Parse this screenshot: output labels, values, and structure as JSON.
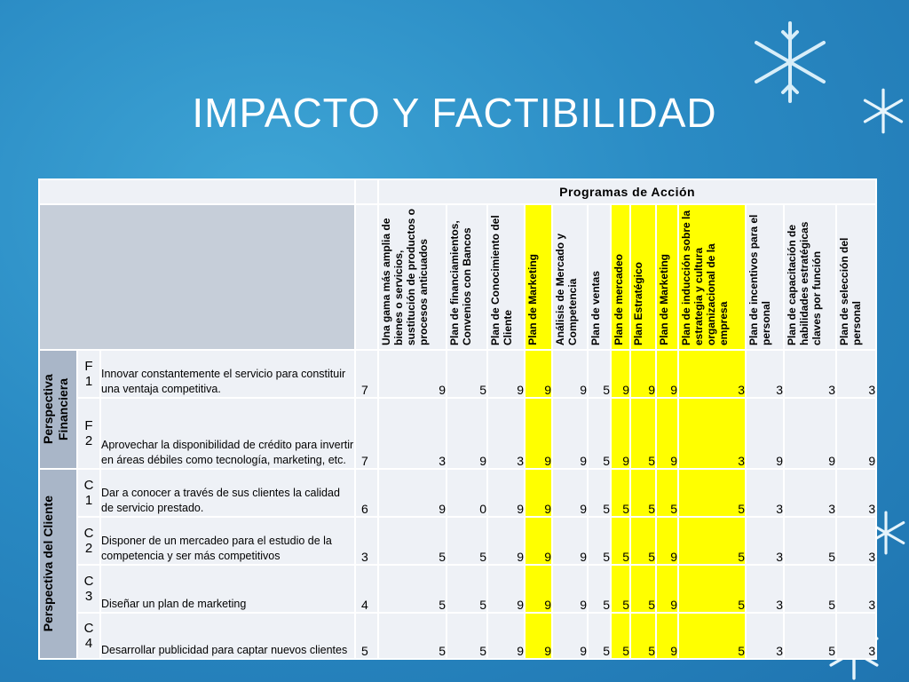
{
  "title": "IMPACTO Y FACTIBILIDAD",
  "programs_header": "Programas de Acción",
  "programs": [
    {
      "label": "Una gama más amplia de bienes o servicios, sustitución de productos o procesos anticuados",
      "highlight": false
    },
    {
      "label": "Plan de financiamientos, Convenios con Bancos",
      "highlight": false
    },
    {
      "label": "Plan de Conocimiento del Cliente",
      "highlight": false
    },
    {
      "label": "Plan de Marketing",
      "highlight": true
    },
    {
      "label": "Análisis de Mercado y Competencia",
      "highlight": false
    },
    {
      "label": "Plan de ventas",
      "highlight": false
    },
    {
      "label": "Plan de mercadeo",
      "highlight": true
    },
    {
      "label": "Plan Estratégico",
      "highlight": true
    },
    {
      "label": "Plan de Marketing",
      "highlight": true
    },
    {
      "label": "Plan de inducción sobre la estrategia y cultura organizacional de la empresa",
      "highlight": true
    },
    {
      "label": "Plan de  incentivos para el personal",
      "highlight": false
    },
    {
      "label": "Plan de capacitación de habilidades estratégicas claves por función",
      "highlight": false
    },
    {
      "label": "Plan de selección del personal",
      "highlight": false
    }
  ],
  "perspectives": [
    {
      "label": "Perspectiva Financiera",
      "rows": 2
    },
    {
      "label": "Perspectiva del Cliente",
      "rows": 4
    }
  ],
  "rows": [
    {
      "code": "F\n1",
      "objective": "Innovar constantemente el servicio para constituir una ventaja competitiva.",
      "total": "7",
      "values": [
        "9",
        "5",
        "9",
        "9",
        "9",
        "5",
        "9",
        "9",
        "9",
        "3",
        "3",
        "3",
        "3"
      ]
    },
    {
      "code": "F\n2",
      "objective": "Aprovechar la disponibilidad de crédito para invertir en áreas débiles como tecnología, marketing, etc.",
      "total": "7",
      "values": [
        "3",
        "9",
        "3",
        "9",
        "9",
        "5",
        "9",
        "5",
        "9",
        "3",
        "9",
        "9",
        "9"
      ]
    },
    {
      "code": "C\n1",
      "objective": "Dar a conocer a través de sus clientes la calidad de servicio prestado.",
      "total": "6",
      "values": [
        "9",
        "0",
        "9",
        "9",
        "9",
        "5",
        "5",
        "5",
        "5",
        "5",
        "3",
        "3",
        "3"
      ]
    },
    {
      "code": "C\n2",
      "objective": "Disponer de un mercadeo para el estudio de  la competencia y ser más competitivos",
      "total": "3",
      "values": [
        "5",
        "5",
        "9",
        "9",
        "9",
        "5",
        "5",
        "5",
        "9",
        "5",
        "3",
        "5",
        "3"
      ]
    },
    {
      "code": "C\n3",
      "objective": "Diseñar un plan de marketing",
      "total": "4",
      "values": [
        "5",
        "5",
        "9",
        "9",
        "9",
        "5",
        "5",
        "5",
        "9",
        "5",
        "3",
        "5",
        "3"
      ]
    },
    {
      "code": "C\n4",
      "objective": "Desarrollar publicidad para captar nuevos clientes",
      "total": "5",
      "values": [
        "5",
        "5",
        "9",
        "9",
        "9",
        "5",
        "5",
        "5",
        "9",
        "5",
        "3",
        "5",
        "3"
      ]
    }
  ],
  "colors": {
    "highlight": "#ffff00",
    "header_band": "#a9b6c8",
    "background": "#2a8bc4"
  }
}
